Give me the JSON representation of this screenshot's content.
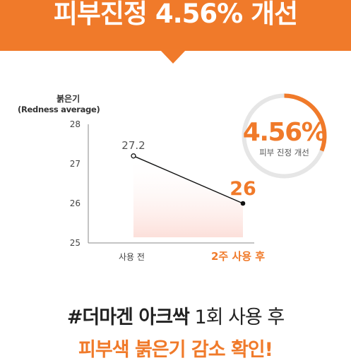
{
  "banner": {
    "title": "피부진정 4.56% 개선"
  },
  "chart_data": {
    "type": "line",
    "categories": [
      "사용 전",
      "2주 사용 후"
    ],
    "values": [
      27.2,
      26
    ],
    "data_labels": [
      "27.2",
      "26"
    ],
    "ylabel_line1": "붉은기",
    "ylabel_line2": "(Redness average)",
    "ylim": [
      25,
      28
    ],
    "yticks": [
      "25",
      "26",
      "27",
      "28"
    ],
    "grid": false,
    "colors": {
      "line": "#111111",
      "accent": "#f07a2a",
      "area": "#fde7e3"
    }
  },
  "badge": {
    "value": "4.56%",
    "caption": "피부 진정 개선",
    "fraction": 0.0456
  },
  "bottom": {
    "line1_bold": "#더마겐 아크싹",
    "line1_rest": " 1회 사용 후",
    "line2": "피부색 붉은기 감소 확인!"
  }
}
